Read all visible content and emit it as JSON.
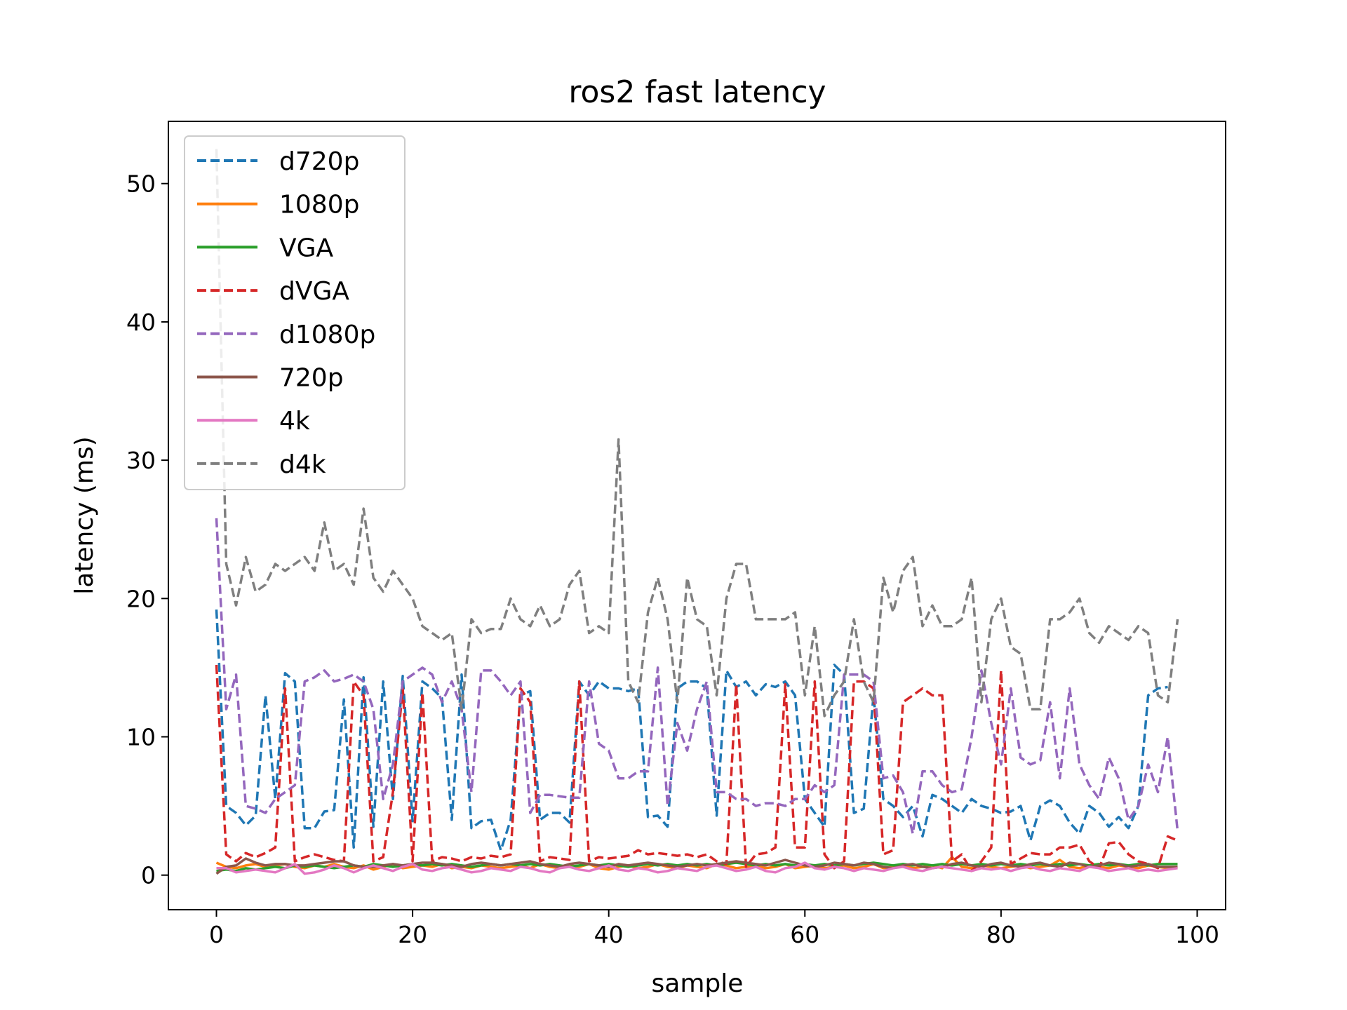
{
  "chart_data": {
    "type": "line",
    "title": "ros2 fast latency",
    "xlabel": "sample",
    "ylabel": "latency (ms)",
    "xlim": [
      -4.9,
      102.9
    ],
    "ylim": [
      -2.5,
      54.5
    ],
    "xticks": [
      0,
      20,
      40,
      60,
      80,
      100
    ],
    "yticks": [
      0,
      10,
      20,
      30,
      40,
      50
    ],
    "grid": false,
    "legend_position": "upper-left",
    "series": [
      {
        "name": "d720p",
        "color": "#1f77b4",
        "style": "dashed",
        "values": [
          19.2,
          5.0,
          4.5,
          3.6,
          4.3,
          13.0,
          5.5,
          14.6,
          14.0,
          3.4,
          3.4,
          4.6,
          4.7,
          12.7,
          2.0,
          14.3,
          3.5,
          14.0,
          5.5,
          14.4,
          3.9,
          14.0,
          13.5,
          12.8,
          4.0,
          14.5,
          3.4,
          3.9,
          4.0,
          1.8,
          4.0,
          13.0,
          13.3,
          4.0,
          4.5,
          4.5,
          3.8,
          14.0,
          13.0,
          14.0,
          13.5,
          13.5,
          13.3,
          13.5,
          4.2,
          4.3,
          3.5,
          13.5,
          14.0,
          14.0,
          13.5,
          4.3,
          14.8,
          13.6,
          14.0,
          13.0,
          13.8,
          13.6,
          14.0,
          13.0,
          5.5,
          4.5,
          3.5,
          15.2,
          14.5,
          4.5,
          4.8,
          13.0,
          5.5,
          5.0,
          4.2,
          5.0,
          2.8,
          5.8,
          5.5,
          5.0,
          4.5,
          5.5,
          5.0,
          4.8,
          4.5,
          4.6,
          5.0,
          2.5,
          5.0,
          5.4,
          5.0,
          3.8,
          3.0,
          5.0,
          4.5,
          3.5,
          4.2,
          3.4,
          5.0,
          13.0,
          13.5,
          13.6,
          null
        ]
      },
      {
        "name": "1080p",
        "color": "#ff7f0e",
        "style": "solid",
        "values": [
          0.9,
          0.6,
          0.5,
          0.7,
          0.8,
          0.6,
          0.7,
          0.8,
          0.6,
          0.5,
          0.7,
          0.6,
          0.8,
          0.6,
          0.5,
          0.7,
          0.4,
          0.6,
          0.8,
          0.5,
          0.6,
          0.7,
          0.6,
          0.8,
          0.5,
          0.6,
          0.5,
          0.7,
          0.6,
          0.5,
          0.6,
          0.7,
          0.5,
          0.8,
          0.6,
          0.5,
          0.7,
          0.6,
          0.8,
          0.5,
          0.4,
          0.6,
          0.7,
          0.5,
          0.6,
          0.8,
          0.6,
          0.5,
          0.7,
          0.6,
          0.5,
          0.8,
          0.7,
          0.5,
          0.6,
          0.7,
          0.5,
          0.6,
          0.8,
          0.5,
          0.6,
          0.7,
          0.5,
          0.6,
          0.7,
          0.5,
          0.6,
          0.8,
          0.5,
          0.6,
          0.7,
          0.5,
          0.6,
          0.7,
          0.5,
          1.3,
          0.6,
          0.5,
          0.7,
          0.6,
          0.5,
          0.6,
          0.7,
          0.5,
          0.6,
          0.7,
          1.1,
          0.6,
          0.5,
          0.7,
          0.6,
          0.5,
          0.7,
          0.6,
          0.5,
          0.7,
          0.6,
          0.5,
          0.6
        ]
      },
      {
        "name": "VGA",
        "color": "#2ca02c",
        "style": "solid",
        "values": [
          0.3,
          0.4,
          0.3,
          0.5,
          0.4,
          0.5,
          0.6,
          0.5,
          0.7,
          0.6,
          0.7,
          0.6,
          0.5,
          0.6,
          0.7,
          0.6,
          0.8,
          0.7,
          0.6,
          0.7,
          0.8,
          0.7,
          0.8,
          0.7,
          0.8,
          0.7,
          0.6,
          0.7,
          0.8,
          0.7,
          0.8,
          0.7,
          0.8,
          0.7,
          0.8,
          0.7,
          0.6,
          0.7,
          0.8,
          0.7,
          0.8,
          0.7,
          0.6,
          0.7,
          0.8,
          0.7,
          0.8,
          0.7,
          0.8,
          0.7,
          0.8,
          0.7,
          0.8,
          0.9,
          0.8,
          0.7,
          0.8,
          0.7,
          0.8,
          0.7,
          0.8,
          0.7,
          0.8,
          0.7,
          0.8,
          0.7,
          0.8,
          0.9,
          0.8,
          0.7,
          0.8,
          0.7,
          0.8,
          0.7,
          0.8,
          0.7,
          0.8,
          0.7,
          0.8,
          0.7,
          0.8,
          0.7,
          0.8,
          0.7,
          0.8,
          0.7,
          0.8,
          0.7,
          0.8,
          0.7,
          0.8,
          0.7,
          0.8,
          0.7,
          0.8,
          0.7,
          0.8,
          0.8,
          0.8
        ]
      },
      {
        "name": "dVGA",
        "color": "#d62728",
        "style": "dashed",
        "values": [
          15.2,
          1.5,
          1.0,
          1.6,
          1.3,
          1.6,
          2.0,
          13.5,
          1.0,
          1.3,
          1.5,
          1.3,
          1.1,
          1.0,
          14.0,
          13.0,
          1.0,
          1.3,
          6.0,
          13.5,
          1.0,
          13.2,
          1.0,
          1.3,
          1.2,
          1.0,
          1.3,
          1.2,
          1.4,
          1.3,
          1.5,
          13.5,
          12.5,
          1.0,
          1.3,
          1.2,
          1.1,
          14.0,
          1.0,
          1.3,
          1.2,
          1.3,
          1.4,
          1.8,
          1.5,
          1.6,
          1.5,
          1.4,
          1.5,
          1.3,
          1.5,
          1.0,
          0.8,
          13.8,
          0.6,
          1.5,
          1.6,
          2.0,
          13.8,
          2.0,
          2.0,
          14.0,
          1.5,
          0.5,
          1.0,
          14.0,
          14.0,
          13.5,
          1.5,
          1.8,
          12.5,
          13.0,
          13.5,
          13.0,
          13.0,
          1.0,
          1.5,
          0.3,
          1.0,
          2.0,
          14.8,
          0.8,
          1.2,
          1.6,
          1.5,
          1.5,
          2.0,
          2.0,
          2.2,
          1.0,
          0.5,
          2.3,
          2.4,
          1.5,
          1.0,
          0.8,
          0.5,
          2.8,
          2.5
        ]
      },
      {
        "name": "d1080p",
        "color": "#9467bd",
        "style": "dashed",
        "values": [
          25.8,
          12.0,
          14.5,
          5.0,
          4.8,
          4.5,
          5.5,
          6.0,
          6.5,
          14.0,
          14.3,
          14.8,
          14.0,
          14.2,
          14.5,
          14.0,
          12.0,
          5.5,
          8.0,
          14.0,
          14.5,
          15.0,
          14.5,
          12.5,
          14.0,
          12.0,
          6.0,
          14.8,
          14.8,
          14.0,
          13.0,
          14.0,
          4.5,
          5.8,
          5.8,
          5.7,
          5.6,
          5.6,
          14.0,
          9.5,
          9.0,
          7.0,
          7.0,
          7.5,
          7.5,
          15.0,
          5.0,
          11.0,
          9.0,
          12.0,
          14.0,
          6.0,
          6.0,
          5.5,
          5.5,
          5.0,
          5.2,
          5.2,
          5.0,
          5.5,
          5.5,
          6.5,
          6.0,
          6.5,
          14.5,
          14.5,
          14.5,
          14.0,
          7.0,
          7.2,
          6.0,
          3.0,
          7.5,
          7.5,
          6.5,
          6.0,
          6.2,
          10.0,
          14.8,
          11.0,
          8.0,
          13.5,
          8.5,
          8.0,
          8.3,
          12.5,
          7.0,
          13.5,
          8.0,
          6.5,
          5.5,
          8.5,
          7.0,
          4.0,
          5.0,
          8.0,
          6.0,
          10.0,
          3.2
        ]
      },
      {
        "name": "720p",
        "color": "#8c564b",
        "style": "solid",
        "values": [
          0.1,
          0.6,
          0.7,
          1.2,
          0.9,
          0.7,
          0.8,
          0.8,
          0.7,
          0.7,
          0.8,
          0.9,
          1.0,
          1.0,
          0.7,
          0.6,
          0.6,
          0.7,
          0.8,
          0.7,
          0.8,
          0.9,
          0.9,
          0.8,
          0.7,
          0.6,
          0.8,
          0.9,
          0.8,
          0.7,
          0.8,
          0.9,
          1.0,
          0.8,
          0.7,
          0.6,
          0.8,
          0.9,
          0.8,
          0.7,
          0.6,
          0.8,
          0.7,
          0.8,
          0.9,
          0.8,
          0.7,
          0.6,
          0.7,
          0.8,
          0.7,
          0.8,
          0.9,
          1.0,
          0.9,
          0.8,
          0.7,
          0.9,
          1.1,
          0.9,
          0.7,
          0.6,
          0.7,
          0.9,
          0.8,
          0.7,
          0.9,
          0.8,
          0.6,
          0.5,
          0.7,
          0.8,
          0.6,
          0.5,
          0.6,
          0.8,
          0.9,
          0.7,
          0.6,
          0.8,
          0.9,
          0.7,
          0.6,
          0.8,
          0.9,
          0.7,
          0.6,
          0.9,
          0.8,
          0.6,
          0.7,
          0.9,
          0.8,
          0.6,
          0.7,
          0.8,
          0.6,
          0.6,
          0.6
        ]
      },
      {
        "name": "4k",
        "color": "#e377c2",
        "style": "solid",
        "values": [
          0.5,
          0.5,
          0.2,
          0.3,
          0.4,
          0.3,
          0.2,
          0.5,
          0.8,
          0.1,
          0.2,
          0.4,
          0.7,
          0.5,
          0.2,
          0.5,
          0.7,
          0.5,
          0.3,
          0.6,
          0.8,
          0.4,
          0.3,
          0.5,
          0.6,
          0.4,
          0.2,
          0.3,
          0.5,
          0.4,
          0.3,
          0.6,
          0.5,
          0.3,
          0.2,
          0.5,
          0.6,
          0.4,
          0.3,
          0.5,
          0.7,
          0.4,
          0.3,
          0.5,
          0.4,
          0.2,
          0.3,
          0.5,
          0.4,
          0.3,
          0.6,
          0.7,
          0.5,
          0.3,
          0.4,
          0.6,
          0.3,
          0.2,
          0.5,
          0.6,
          0.9,
          0.5,
          0.4,
          0.6,
          0.5,
          0.3,
          0.5,
          0.4,
          0.3,
          0.5,
          0.6,
          0.4,
          0.3,
          0.5,
          0.6,
          0.5,
          0.4,
          0.3,
          0.5,
          0.4,
          0.5,
          0.3,
          0.5,
          0.6,
          0.4,
          0.3,
          0.5,
          0.4,
          0.3,
          0.6,
          0.5,
          0.3,
          0.4,
          0.5,
          0.3,
          0.4,
          0.3,
          0.4,
          0.5
        ]
      },
      {
        "name": "d4k",
        "color": "#7f7f7f",
        "style": "dashed",
        "values": [
          52.5,
          22.5,
          19.5,
          23.0,
          20.5,
          21.0,
          22.5,
          22.0,
          22.5,
          23.0,
          22.0,
          25.5,
          22.0,
          22.5,
          21.0,
          26.5,
          21.5,
          20.5,
          22.0,
          21.0,
          20.0,
          18.0,
          17.5,
          17.0,
          17.5,
          12.0,
          18.5,
          17.5,
          17.8,
          17.8,
          20.0,
          18.5,
          18.0,
          19.5,
          18.0,
          18.5,
          21.0,
          22.0,
          17.5,
          18.0,
          17.5,
          31.5,
          14.0,
          12.5,
          19.0,
          21.5,
          18.5,
          12.5,
          21.5,
          18.5,
          18.0,
          13.0,
          20.0,
          22.5,
          22.5,
          18.5,
          18.5,
          18.5,
          18.5,
          19.0,
          13.0,
          18.0,
          11.5,
          13.0,
          14.0,
          18.5,
          14.0,
          12.5,
          21.5,
          19.0,
          22.0,
          23.0,
          18.0,
          19.5,
          18.0,
          18.0,
          18.5,
          21.5,
          12.5,
          18.5,
          20.0,
          16.5,
          16.0,
          12.0,
          12.0,
          18.5,
          18.5,
          19.0,
          20.0,
          17.5,
          16.8,
          18.0,
          17.5,
          17.0,
          18.0,
          17.5,
          13.0,
          12.5,
          18.5
        ]
      }
    ]
  }
}
